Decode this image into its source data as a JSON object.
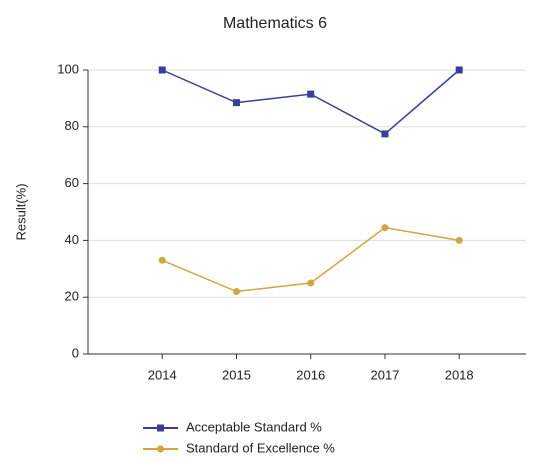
{
  "chart_data": {
    "type": "line",
    "title": "Mathematics 6",
    "y_label": "Result(%)",
    "categories": [
      "2014",
      "2015",
      "2016",
      "2017",
      "2018"
    ],
    "series": [
      {
        "name": "Acceptable Standard %",
        "color": "#3a3d9c",
        "marker": "square",
        "values": [
          100,
          88.5,
          91.5,
          77.5,
          100
        ]
      },
      {
        "name": "Standard of Excellence %",
        "color": "#d2a443",
        "marker": "circle",
        "values": [
          33,
          22,
          25,
          44.5,
          40
        ]
      }
    ],
    "ylim": [
      0,
      100
    ],
    "yticks": [
      0,
      20,
      40,
      60,
      80,
      100
    ],
    "grid": true,
    "legend": "bottom"
  }
}
